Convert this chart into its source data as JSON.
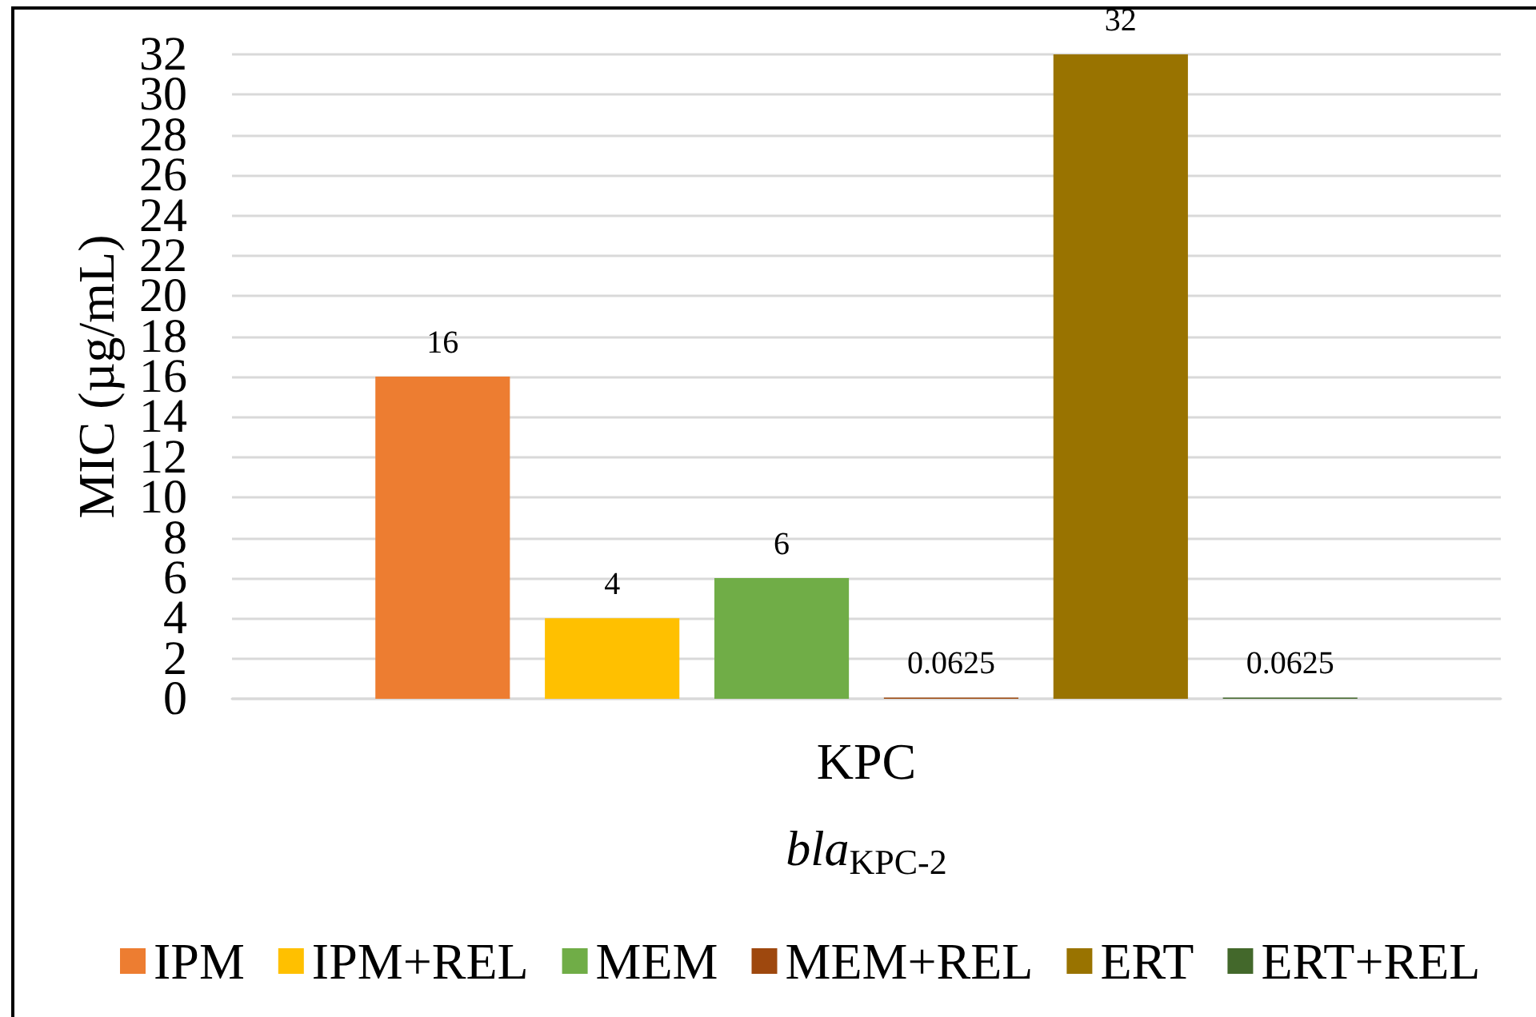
{
  "chart_data": {
    "type": "bar",
    "categories": [
      "KPC"
    ],
    "series": [
      {
        "name": "IPM",
        "color": "#ed7d31",
        "values": [
          16
        ]
      },
      {
        "name": "IPM+REL",
        "color": "#ffc000",
        "values": [
          4
        ]
      },
      {
        "name": "MEM",
        "color": "#70ad47",
        "values": [
          6
        ]
      },
      {
        "name": "MEM+REL",
        "color": "#9e480e",
        "values": [
          0.0625
        ]
      },
      {
        "name": "ERT",
        "color": "#997300",
        "values": [
          32
        ]
      },
      {
        "name": "ERT+REL",
        "color": "#43682b",
        "values": [
          0.0625
        ]
      }
    ],
    "xlabel": "bla$_{KPC-2}$",
    "ylabel": "MIC (µg/mL)",
    "ylim": [
      0,
      32
    ],
    "yticks": [
      0,
      2,
      4,
      6,
      8,
      10,
      12,
      14,
      16,
      18,
      20,
      22,
      24,
      26,
      28,
      30,
      32
    ],
    "grid": "y",
    "legend": "bottom",
    "data_labels": true
  }
}
